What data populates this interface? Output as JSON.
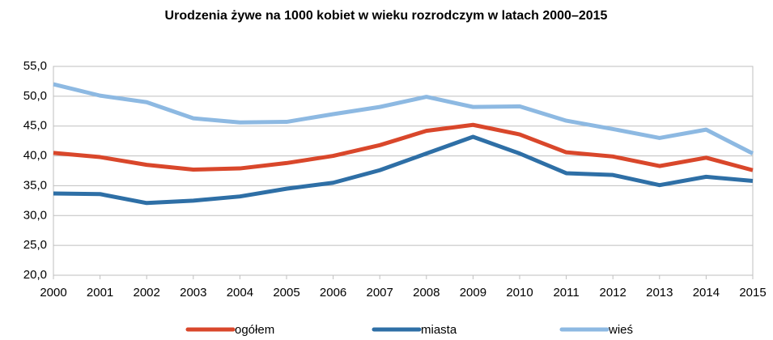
{
  "chart_data": {
    "type": "line",
    "title": "Urodzenia żywe na 1000 kobiet w wieku rozrodczym w latach 2000–2015",
    "x": [
      2000,
      2001,
      2002,
      2003,
      2004,
      2005,
      2006,
      2007,
      2008,
      2009,
      2010,
      2011,
      2012,
      2013,
      2014,
      2015
    ],
    "xlim": [
      2000,
      2015
    ],
    "xticks": [
      2000,
      2001,
      2002,
      2003,
      2004,
      2005,
      2006,
      2007,
      2008,
      2009,
      2010,
      2011,
      2012,
      2013,
      2014,
      2015
    ],
    "ylim": [
      20,
      55
    ],
    "yticks": [
      {
        "value": 20,
        "label": "20,0"
      },
      {
        "value": 25,
        "label": "25,0"
      },
      {
        "value": 30,
        "label": "30,0"
      },
      {
        "value": 35,
        "label": "35,0"
      },
      {
        "value": 40,
        "label": "40,0"
      },
      {
        "value": 45,
        "label": "45,0"
      },
      {
        "value": 50,
        "label": "50,0"
      },
      {
        "value": 55,
        "label": "55,0"
      }
    ],
    "grid": true,
    "legend": "bottom",
    "series": [
      {
        "name": "ogółem",
        "color": "#d9472b",
        "values": [
          40.5,
          39.8,
          38.5,
          37.7,
          37.9,
          38.8,
          40.0,
          41.8,
          44.2,
          45.2,
          43.6,
          40.6,
          39.9,
          38.3,
          39.7,
          37.6
        ]
      },
      {
        "name": "miasta",
        "color": "#2e6fa6",
        "values": [
          33.7,
          33.6,
          32.1,
          32.5,
          33.2,
          34.5,
          35.5,
          37.6,
          40.4,
          43.2,
          40.4,
          37.1,
          36.8,
          35.1,
          36.5,
          35.8
        ]
      },
      {
        "name": "wieś",
        "color": "#8db9e2",
        "values": [
          52.0,
          50.1,
          49.0,
          46.3,
          45.6,
          45.7,
          47.0,
          48.2,
          49.9,
          48.2,
          48.3,
          45.9,
          44.5,
          43.0,
          44.4,
          40.4
        ]
      }
    ]
  }
}
